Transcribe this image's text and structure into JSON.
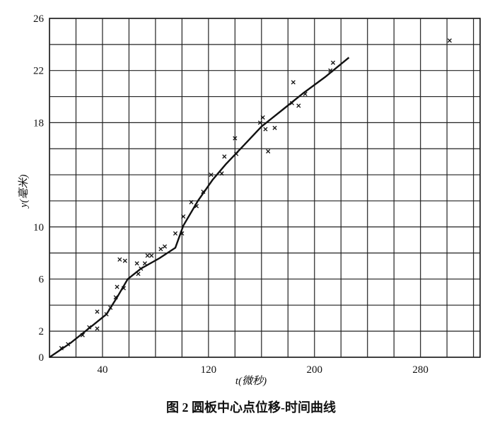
{
  "chart_data": {
    "type": "scatter",
    "title": "图 2   圆板中心点位移-时间曲线",
    "x_label": "t(微秒)",
    "y_label": "y(毫米)",
    "xlim": [
      0,
      325
    ],
    "ylim": [
      0,
      26
    ],
    "xticks": [
      40,
      120,
      200,
      280
    ],
    "yticks": [
      0,
      2,
      6,
      10,
      18,
      22,
      26
    ],
    "xgrid": [
      20,
      40,
      60,
      80,
      100,
      120,
      140,
      160,
      180,
      200,
      220,
      240,
      260,
      280,
      300,
      320
    ],
    "ygrid": [
      2,
      4,
      6,
      8,
      10,
      12,
      14,
      16,
      18,
      20,
      22,
      24
    ],
    "grid": true,
    "color": "#111111",
    "points": {
      "x": [
        9,
        14,
        25,
        30,
        36,
        36,
        43,
        46,
        50,
        51,
        56,
        53,
        57,
        67,
        69,
        72,
        66,
        74,
        77,
        84,
        87,
        95,
        100,
        101,
        107,
        111,
        116,
        122,
        130,
        132,
        140,
        141,
        159,
        161,
        163,
        165,
        170,
        184,
        183,
        188,
        193,
        212,
        214,
        302
      ],
      "y": [
        0.7,
        1.0,
        1.7,
        2.3,
        2.2,
        3.5,
        3.3,
        3.8,
        4.6,
        5.4,
        5.3,
        7.5,
        7.4,
        6.4,
        6.8,
        7.2,
        7.2,
        7.8,
        7.8,
        8.3,
        8.5,
        9.5,
        9.5,
        10.8,
        11.9,
        11.6,
        12.7,
        14.0,
        14.1,
        15.4,
        16.8,
        15.6,
        18.0,
        18.4,
        17.5,
        15.8,
        17.6,
        21.1,
        19.5,
        19.3,
        20.2,
        22.0,
        22.6,
        24.3
      ]
    },
    "curve": {
      "x": [
        0,
        16,
        32,
        43,
        51,
        59,
        69,
        83,
        95,
        101,
        112,
        123,
        133,
        147,
        160,
        176,
        192,
        208,
        226
      ],
      "y": [
        0,
        1.1,
        2.4,
        3.3,
        4.6,
        6.0,
        6.8,
        7.6,
        8.4,
        10.1,
        12.0,
        13.6,
        14.8,
        16.3,
        17.7,
        19.0,
        20.3,
        21.5,
        23.0
      ]
    }
  }
}
